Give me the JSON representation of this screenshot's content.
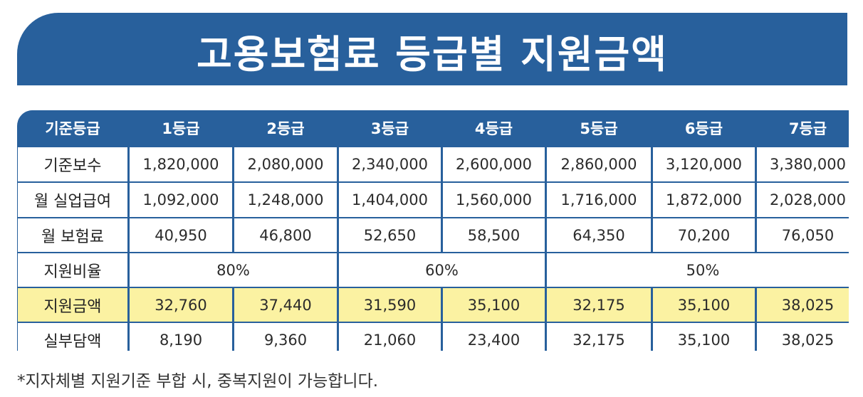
{
  "title": "고용보험료 등급별 지원금액",
  "header": [
    "기준등급",
    "1등급",
    "2등급",
    "3등급",
    "4등급",
    "5등급",
    "6등급",
    "7등급"
  ],
  "rows": [
    {
      "label": "기준보수",
      "values": [
        "1,820,000",
        "2,080,000",
        "2,340,000",
        "2,600,000",
        "2,860,000",
        "3,120,000",
        "3,380,000"
      ]
    },
    {
      "label": "월 실업급여",
      "values": [
        "1,092,000",
        "1,248,000",
        "1,404,000",
        "1,560,000",
        "1,716,000",
        "1,872,000",
        "2,028,000"
      ]
    },
    {
      "label": "월 보험료",
      "values": [
        "40,950",
        "46,800",
        "52,650",
        "58,500",
        "64,350",
        "70,200",
        "76,050"
      ]
    }
  ],
  "ratio_row": {
    "label": "지원비율",
    "groups": [
      "80%",
      "60%",
      "50%"
    ]
  },
  "support_row": {
    "label": "지원금액",
    "values": [
      "32,760",
      "37,440",
      "31,590",
      "35,100",
      "32,175",
      "35,100",
      "38,025"
    ]
  },
  "self_row": {
    "label": "실부담액",
    "values": [
      "8,190",
      "9,360",
      "21,060",
      "23,400",
      "32,175",
      "35,100",
      "38,025"
    ]
  },
  "footnote": "*지자체별 지원기준 부합 시, 중복지원이 가능합니다.",
  "colors": {
    "primary": "#28609c",
    "highlight": "#fbf2a2"
  }
}
